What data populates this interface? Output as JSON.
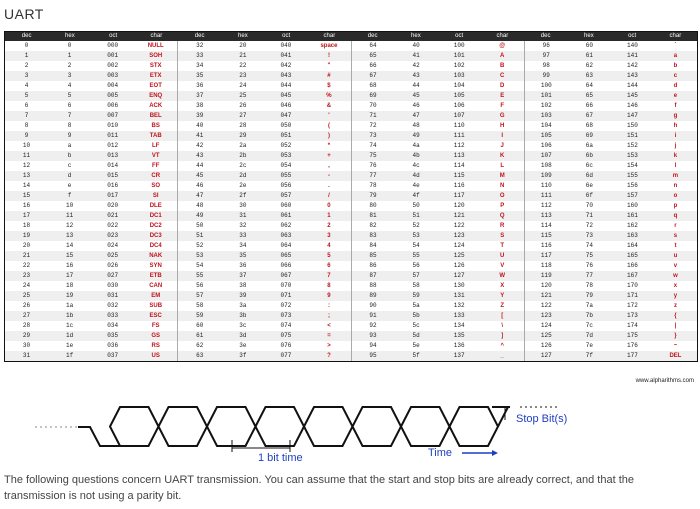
{
  "page": {
    "title": "UART",
    "footnote": "The following questions concern UART transmission. You can assume that the start and stop bits are already correct, and that the transmission is not using a parity bit."
  },
  "ascii_table": {
    "headers": [
      "dec",
      "hex",
      "oct",
      "char"
    ],
    "blocks": [
      {
        "rows": [
          [
            "0",
            "0",
            "000",
            "NULL"
          ],
          [
            "1",
            "1",
            "001",
            "SOH"
          ],
          [
            "2",
            "2",
            "002",
            "STX"
          ],
          [
            "3",
            "3",
            "003",
            "ETX"
          ],
          [
            "4",
            "4",
            "004",
            "EOT"
          ],
          [
            "5",
            "5",
            "005",
            "ENQ"
          ],
          [
            "6",
            "6",
            "006",
            "ACK"
          ],
          [
            "7",
            "7",
            "007",
            "BEL"
          ],
          [
            "8",
            "8",
            "010",
            "BS"
          ],
          [
            "9",
            "9",
            "011",
            "TAB"
          ],
          [
            "10",
            "a",
            "012",
            "LF"
          ],
          [
            "11",
            "b",
            "013",
            "VT"
          ],
          [
            "12",
            "c",
            "014",
            "FF"
          ],
          [
            "13",
            "d",
            "015",
            "CR"
          ],
          [
            "14",
            "e",
            "016",
            "SO"
          ],
          [
            "15",
            "f",
            "017",
            "SI"
          ],
          [
            "16",
            "10",
            "020",
            "DLE"
          ],
          [
            "17",
            "11",
            "021",
            "DC1"
          ],
          [
            "18",
            "12",
            "022",
            "DC2"
          ],
          [
            "19",
            "13",
            "023",
            "DC3"
          ],
          [
            "20",
            "14",
            "024",
            "DC4"
          ],
          [
            "21",
            "15",
            "025",
            "NAK"
          ],
          [
            "22",
            "16",
            "026",
            "SYN"
          ],
          [
            "23",
            "17",
            "027",
            "ETB"
          ],
          [
            "24",
            "18",
            "030",
            "CAN"
          ],
          [
            "25",
            "19",
            "031",
            "EM"
          ],
          [
            "26",
            "1a",
            "032",
            "SUB"
          ],
          [
            "27",
            "1b",
            "033",
            "ESC"
          ],
          [
            "28",
            "1c",
            "034",
            "FS"
          ],
          [
            "29",
            "1d",
            "035",
            "GS"
          ],
          [
            "30",
            "1e",
            "036",
            "RS"
          ],
          [
            "31",
            "1f",
            "037",
            "US"
          ]
        ]
      },
      {
        "rows": [
          [
            "32",
            "20",
            "040",
            "space"
          ],
          [
            "33",
            "21",
            "041",
            "!"
          ],
          [
            "34",
            "22",
            "042",
            "\""
          ],
          [
            "35",
            "23",
            "043",
            "#"
          ],
          [
            "36",
            "24",
            "044",
            "$"
          ],
          [
            "37",
            "25",
            "045",
            "%"
          ],
          [
            "38",
            "26",
            "046",
            "&"
          ],
          [
            "39",
            "27",
            "047",
            "'"
          ],
          [
            "40",
            "28",
            "050",
            "("
          ],
          [
            "41",
            "29",
            "051",
            ")"
          ],
          [
            "42",
            "2a",
            "052",
            "*"
          ],
          [
            "43",
            "2b",
            "053",
            "+"
          ],
          [
            "44",
            "2c",
            "054",
            ","
          ],
          [
            "45",
            "2d",
            "055",
            "-"
          ],
          [
            "46",
            "2e",
            "056",
            "."
          ],
          [
            "47",
            "2f",
            "057",
            "/"
          ],
          [
            "48",
            "30",
            "060",
            "0"
          ],
          [
            "49",
            "31",
            "061",
            "1"
          ],
          [
            "50",
            "32",
            "062",
            "2"
          ],
          [
            "51",
            "33",
            "063",
            "3"
          ],
          [
            "52",
            "34",
            "064",
            "4"
          ],
          [
            "53",
            "35",
            "065",
            "5"
          ],
          [
            "54",
            "36",
            "066",
            "6"
          ],
          [
            "55",
            "37",
            "067",
            "7"
          ],
          [
            "56",
            "38",
            "070",
            "8"
          ],
          [
            "57",
            "39",
            "071",
            "9"
          ],
          [
            "58",
            "3a",
            "072",
            ":"
          ],
          [
            "59",
            "3b",
            "073",
            ";"
          ],
          [
            "60",
            "3c",
            "074",
            "<"
          ],
          [
            "61",
            "3d",
            "075",
            "="
          ],
          [
            "62",
            "3e",
            "076",
            ">"
          ],
          [
            "63",
            "3f",
            "077",
            "?"
          ]
        ]
      },
      {
        "rows": [
          [
            "64",
            "40",
            "100",
            "@"
          ],
          [
            "65",
            "41",
            "101",
            "A"
          ],
          [
            "66",
            "42",
            "102",
            "B"
          ],
          [
            "67",
            "43",
            "103",
            "C"
          ],
          [
            "68",
            "44",
            "104",
            "D"
          ],
          [
            "69",
            "45",
            "105",
            "E"
          ],
          [
            "70",
            "46",
            "106",
            "F"
          ],
          [
            "71",
            "47",
            "107",
            "G"
          ],
          [
            "72",
            "48",
            "110",
            "H"
          ],
          [
            "73",
            "49",
            "111",
            "I"
          ],
          [
            "74",
            "4a",
            "112",
            "J"
          ],
          [
            "75",
            "4b",
            "113",
            "K"
          ],
          [
            "76",
            "4c",
            "114",
            "L"
          ],
          [
            "77",
            "4d",
            "115",
            "M"
          ],
          [
            "78",
            "4e",
            "116",
            "N"
          ],
          [
            "79",
            "4f",
            "117",
            "O"
          ],
          [
            "80",
            "50",
            "120",
            "P"
          ],
          [
            "81",
            "51",
            "121",
            "Q"
          ],
          [
            "82",
            "52",
            "122",
            "R"
          ],
          [
            "83",
            "53",
            "123",
            "S"
          ],
          [
            "84",
            "54",
            "124",
            "T"
          ],
          [
            "85",
            "55",
            "125",
            "U"
          ],
          [
            "86",
            "56",
            "126",
            "V"
          ],
          [
            "87",
            "57",
            "127",
            "W"
          ],
          [
            "88",
            "58",
            "130",
            "X"
          ],
          [
            "89",
            "59",
            "131",
            "Y"
          ],
          [
            "90",
            "5a",
            "132",
            "Z"
          ],
          [
            "91",
            "5b",
            "133",
            "["
          ],
          [
            "92",
            "5c",
            "134",
            "\\"
          ],
          [
            "93",
            "5d",
            "135",
            "]"
          ],
          [
            "94",
            "5e",
            "136",
            "^"
          ],
          [
            "95",
            "5f",
            "137",
            "_"
          ]
        ]
      },
      {
        "rows": [
          [
            "96",
            "60",
            "140",
            "`"
          ],
          [
            "97",
            "61",
            "141",
            "a"
          ],
          [
            "98",
            "62",
            "142",
            "b"
          ],
          [
            "99",
            "63",
            "143",
            "c"
          ],
          [
            "100",
            "64",
            "144",
            "d"
          ],
          [
            "101",
            "65",
            "145",
            "e"
          ],
          [
            "102",
            "66",
            "146",
            "f"
          ],
          [
            "103",
            "67",
            "147",
            "g"
          ],
          [
            "104",
            "68",
            "150",
            "h"
          ],
          [
            "105",
            "69",
            "151",
            "i"
          ],
          [
            "106",
            "6a",
            "152",
            "j"
          ],
          [
            "107",
            "6b",
            "153",
            "k"
          ],
          [
            "108",
            "6c",
            "154",
            "l"
          ],
          [
            "109",
            "6d",
            "155",
            "m"
          ],
          [
            "110",
            "6e",
            "156",
            "n"
          ],
          [
            "111",
            "6f",
            "157",
            "o"
          ],
          [
            "112",
            "70",
            "160",
            "p"
          ],
          [
            "113",
            "71",
            "161",
            "q"
          ],
          [
            "114",
            "72",
            "162",
            "r"
          ],
          [
            "115",
            "73",
            "163",
            "s"
          ],
          [
            "116",
            "74",
            "164",
            "t"
          ],
          [
            "117",
            "75",
            "165",
            "u"
          ],
          [
            "118",
            "76",
            "166",
            "v"
          ],
          [
            "119",
            "77",
            "167",
            "w"
          ],
          [
            "120",
            "78",
            "170",
            "x"
          ],
          [
            "121",
            "79",
            "171",
            "y"
          ],
          [
            "122",
            "7a",
            "172",
            "z"
          ],
          [
            "123",
            "7b",
            "173",
            "{"
          ],
          [
            "124",
            "7c",
            "174",
            "|"
          ],
          [
            "125",
            "7d",
            "175",
            "}"
          ],
          [
            "126",
            "7e",
            "176",
            "~"
          ],
          [
            "127",
            "7f",
            "177",
            "DEL"
          ]
        ]
      }
    ],
    "footer": "www.alpharithms.com",
    "char_color": "#c0121a"
  },
  "timing": {
    "stop_label": "Stop Bit(s)",
    "bit_label": "1 bit time",
    "time_label": "Time",
    "accent": "#1f3fbf"
  }
}
